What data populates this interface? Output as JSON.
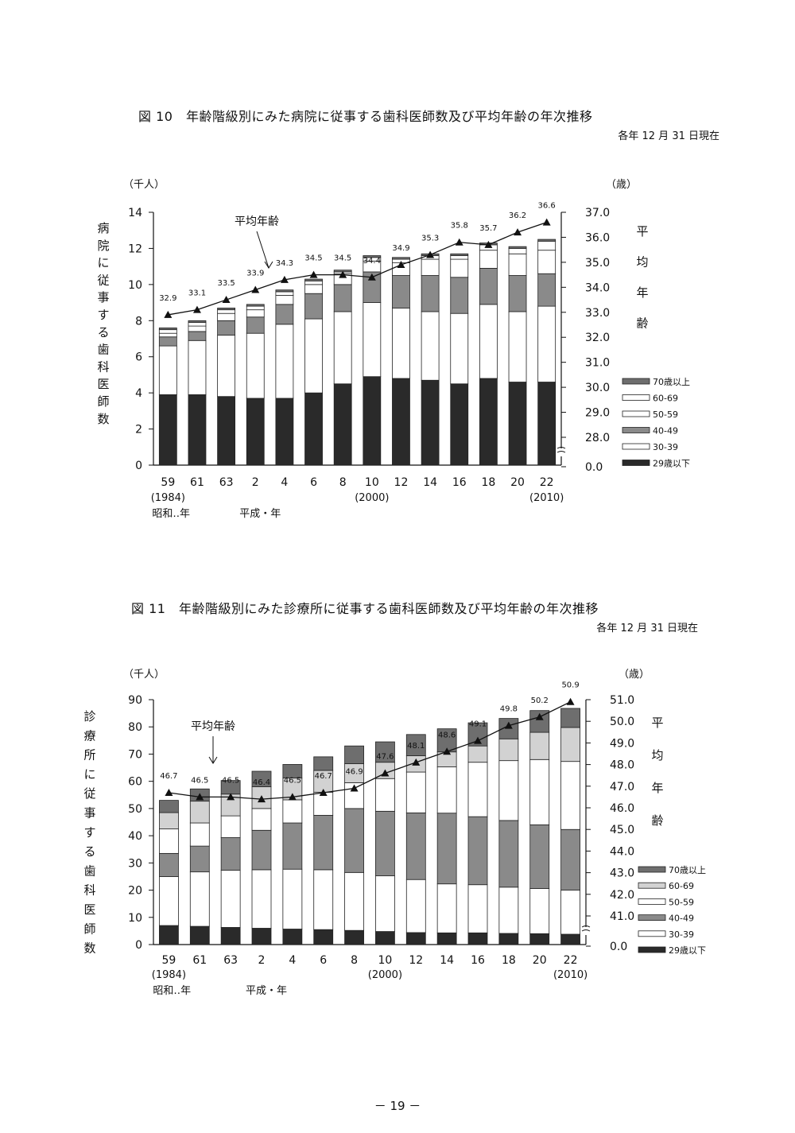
{
  "page_number": "－ 19 －",
  "chart_data": [
    {
      "type": "bar",
      "stacked": true,
      "title": "図 10　年齢階級別にみた病院に従事する歯科医師数及び平均年齢の年次推移",
      "date_note": "各年 12 月 31 日現在",
      "y_unit": "（千人）",
      "ylabel": "病院に従事する歯科医師数",
      "ylim": [
        0,
        14
      ],
      "y_ticks": [
        "0",
        "2",
        "4",
        "6",
        "8",
        "10",
        "12",
        "14"
      ],
      "y2_unit": "（歳）",
      "y2label": "平均年齢",
      "y2lim": [
        28.0,
        37.0
      ],
      "y2_ticks": [
        "0.0",
        "28.0",
        "29.0",
        "30.0",
        "31.0",
        "32.0",
        "33.0",
        "34.0",
        "35.0",
        "36.0",
        "37.0"
      ],
      "y2_break": true,
      "categories": [
        "59",
        "61",
        "63",
        "2",
        "4",
        "6",
        "8",
        "10",
        "12",
        "14",
        "16",
        "18",
        "20",
        "22"
      ],
      "x_sublabels": [
        {
          "index": 0,
          "text": "(1984)"
        },
        {
          "index": 7,
          "text": "(2000)"
        },
        {
          "index": 13,
          "text": "(2010)"
        }
      ],
      "era_labels": [
        {
          "index": 0,
          "text": "昭和‥年"
        },
        {
          "index": 3,
          "text": "平成・年"
        }
      ],
      "legend_position": "right",
      "series": [
        {
          "name": "29歳以下",
          "color": "#2a2a2a",
          "values": [
            3.9,
            3.9,
            3.8,
            3.7,
            3.7,
            4.0,
            4.5,
            4.9,
            4.8,
            4.7,
            4.5,
            4.8,
            4.6,
            4.6
          ]
        },
        {
          "name": "30-39",
          "color": "#ffffff",
          "values": [
            2.7,
            3.0,
            3.4,
            3.6,
            4.1,
            4.1,
            4.0,
            4.1,
            3.9,
            3.8,
            3.9,
            4.1,
            3.9,
            4.2
          ]
        },
        {
          "name": "40-49",
          "color": "#8a8a8a",
          "values": [
            0.5,
            0.5,
            0.8,
            0.9,
            1.1,
            1.4,
            1.5,
            1.7,
            1.8,
            2.0,
            2.0,
            2.0,
            2.0,
            1.8
          ]
        },
        {
          "name": "50-59",
          "color": "#ffffff",
          "values": [
            0.2,
            0.3,
            0.4,
            0.4,
            0.5,
            0.5,
            0.6,
            0.6,
            0.7,
            0.9,
            1.0,
            1.0,
            1.2,
            1.3
          ]
        },
        {
          "name": "60-69",
          "color": "#ffffff",
          "values": [
            0.2,
            0.2,
            0.2,
            0.2,
            0.2,
            0.2,
            0.1,
            0.2,
            0.2,
            0.2,
            0.2,
            0.3,
            0.3,
            0.5
          ]
        },
        {
          "name": "70歳以上",
          "color": "#6e6e6e",
          "values": [
            0.1,
            0.1,
            0.1,
            0.1,
            0.1,
            0.1,
            0.1,
            0.1,
            0.1,
            0.1,
            0.1,
            0.1,
            0.1,
            0.1
          ]
        }
      ],
      "line": {
        "name": "平均年齢",
        "values": [
          32.9,
          33.1,
          33.5,
          33.9,
          34.3,
          34.5,
          34.5,
          34.4,
          34.9,
          35.3,
          35.8,
          35.7,
          36.2,
          36.6
        ],
        "labels": [
          "32.9",
          "33.1",
          "33.5",
          "33.9",
          "34.3",
          "34.5",
          "34.5",
          "34.4",
          "34.9",
          "35.3",
          "35.8",
          "35.7",
          "36.2",
          "36.6"
        ],
        "annotation": "平均年齢"
      }
    },
    {
      "type": "bar",
      "stacked": true,
      "title": "図 11　年齢階級別にみた診療所に従事する歯科医師数及び平均年齢の年次推移",
      "date_note": "各年 12 月 31 日現在",
      "y_unit": "（千人）",
      "ylabel": "診療所に従事する歯科医師数",
      "ylim": [
        0,
        90
      ],
      "y_ticks": [
        "0",
        "10",
        "20",
        "30",
        "40",
        "50",
        "60",
        "70",
        "80",
        "90"
      ],
      "y2_unit": "（歳）",
      "y2label": "平均年齢",
      "y2lim": [
        41.0,
        51.0
      ],
      "y2_ticks": [
        "0.0",
        "41.0",
        "42.0",
        "43.0",
        "44.0",
        "45.0",
        "46.0",
        "47.0",
        "48.0",
        "49.0",
        "50.0",
        "51.0"
      ],
      "y2_break": true,
      "categories": [
        "59",
        "61",
        "63",
        "2",
        "4",
        "6",
        "8",
        "10",
        "12",
        "14",
        "16",
        "18",
        "20",
        "22"
      ],
      "x_sublabels": [
        {
          "index": 0,
          "text": "(1984)"
        },
        {
          "index": 7,
          "text": "(2000)"
        },
        {
          "index": 13,
          "text": "(2010)"
        }
      ],
      "era_labels": [
        {
          "index": 0,
          "text": "昭和‥年"
        },
        {
          "index": 3,
          "text": "平成・年"
        }
      ],
      "legend_position": "right",
      "series": [
        {
          "name": "29歳以下",
          "color": "#2a2a2a",
          "values": [
            7.0,
            6.7,
            6.3,
            6.0,
            5.7,
            5.5,
            5.2,
            4.8,
            4.4,
            4.3,
            4.3,
            4.1,
            4.0,
            3.8
          ]
        },
        {
          "name": "30-39",
          "color": "#ffffff",
          "values": [
            18.0,
            20.0,
            21.0,
            21.5,
            22.0,
            22.0,
            21.3,
            20.5,
            19.5,
            18.0,
            17.7,
            17.0,
            16.6,
            16.2
          ]
        },
        {
          "name": "40-49",
          "color": "#8a8a8a",
          "values": [
            8.5,
            9.5,
            12.0,
            14.5,
            17.0,
            20.0,
            23.5,
            23.7,
            24.5,
            26.0,
            25.0,
            24.5,
            23.4,
            22.3
          ]
        },
        {
          "name": "50-59",
          "color": "#ffffff",
          "values": [
            9.0,
            8.5,
            8.0,
            8.0,
            8.5,
            8.5,
            9.5,
            12.0,
            15.0,
            17.0,
            20.0,
            22.0,
            24.0,
            25.0
          ]
        },
        {
          "name": "60-69",
          "color": "#d2d2d2",
          "values": [
            6.0,
            8.0,
            8.0,
            8.0,
            8.0,
            8.0,
            7.0,
            6.0,
            6.0,
            5.5,
            6.0,
            8.0,
            10.0,
            12.5
          ]
        },
        {
          "name": "70歳以上",
          "color": "#6e6e6e",
          "values": [
            4.5,
            4.5,
            5.0,
            5.7,
            5.0,
            5.0,
            6.5,
            7.5,
            7.8,
            8.5,
            8.5,
            7.5,
            8.0,
            7.0
          ]
        }
      ],
      "line": {
        "name": "平均年齢",
        "values": [
          46.7,
          46.5,
          46.5,
          46.4,
          46.5,
          46.7,
          46.9,
          47.6,
          48.1,
          48.6,
          49.1,
          49.8,
          50.2,
          50.9
        ],
        "labels": [
          "46.7",
          "46.5",
          "46.5",
          "46.4",
          "46.5",
          "46.7",
          "46.9",
          "47.6",
          "48.1",
          "48.6",
          "49.1",
          "49.8",
          "50.2",
          "50.9"
        ],
        "annotation": "平均年齢"
      }
    }
  ]
}
